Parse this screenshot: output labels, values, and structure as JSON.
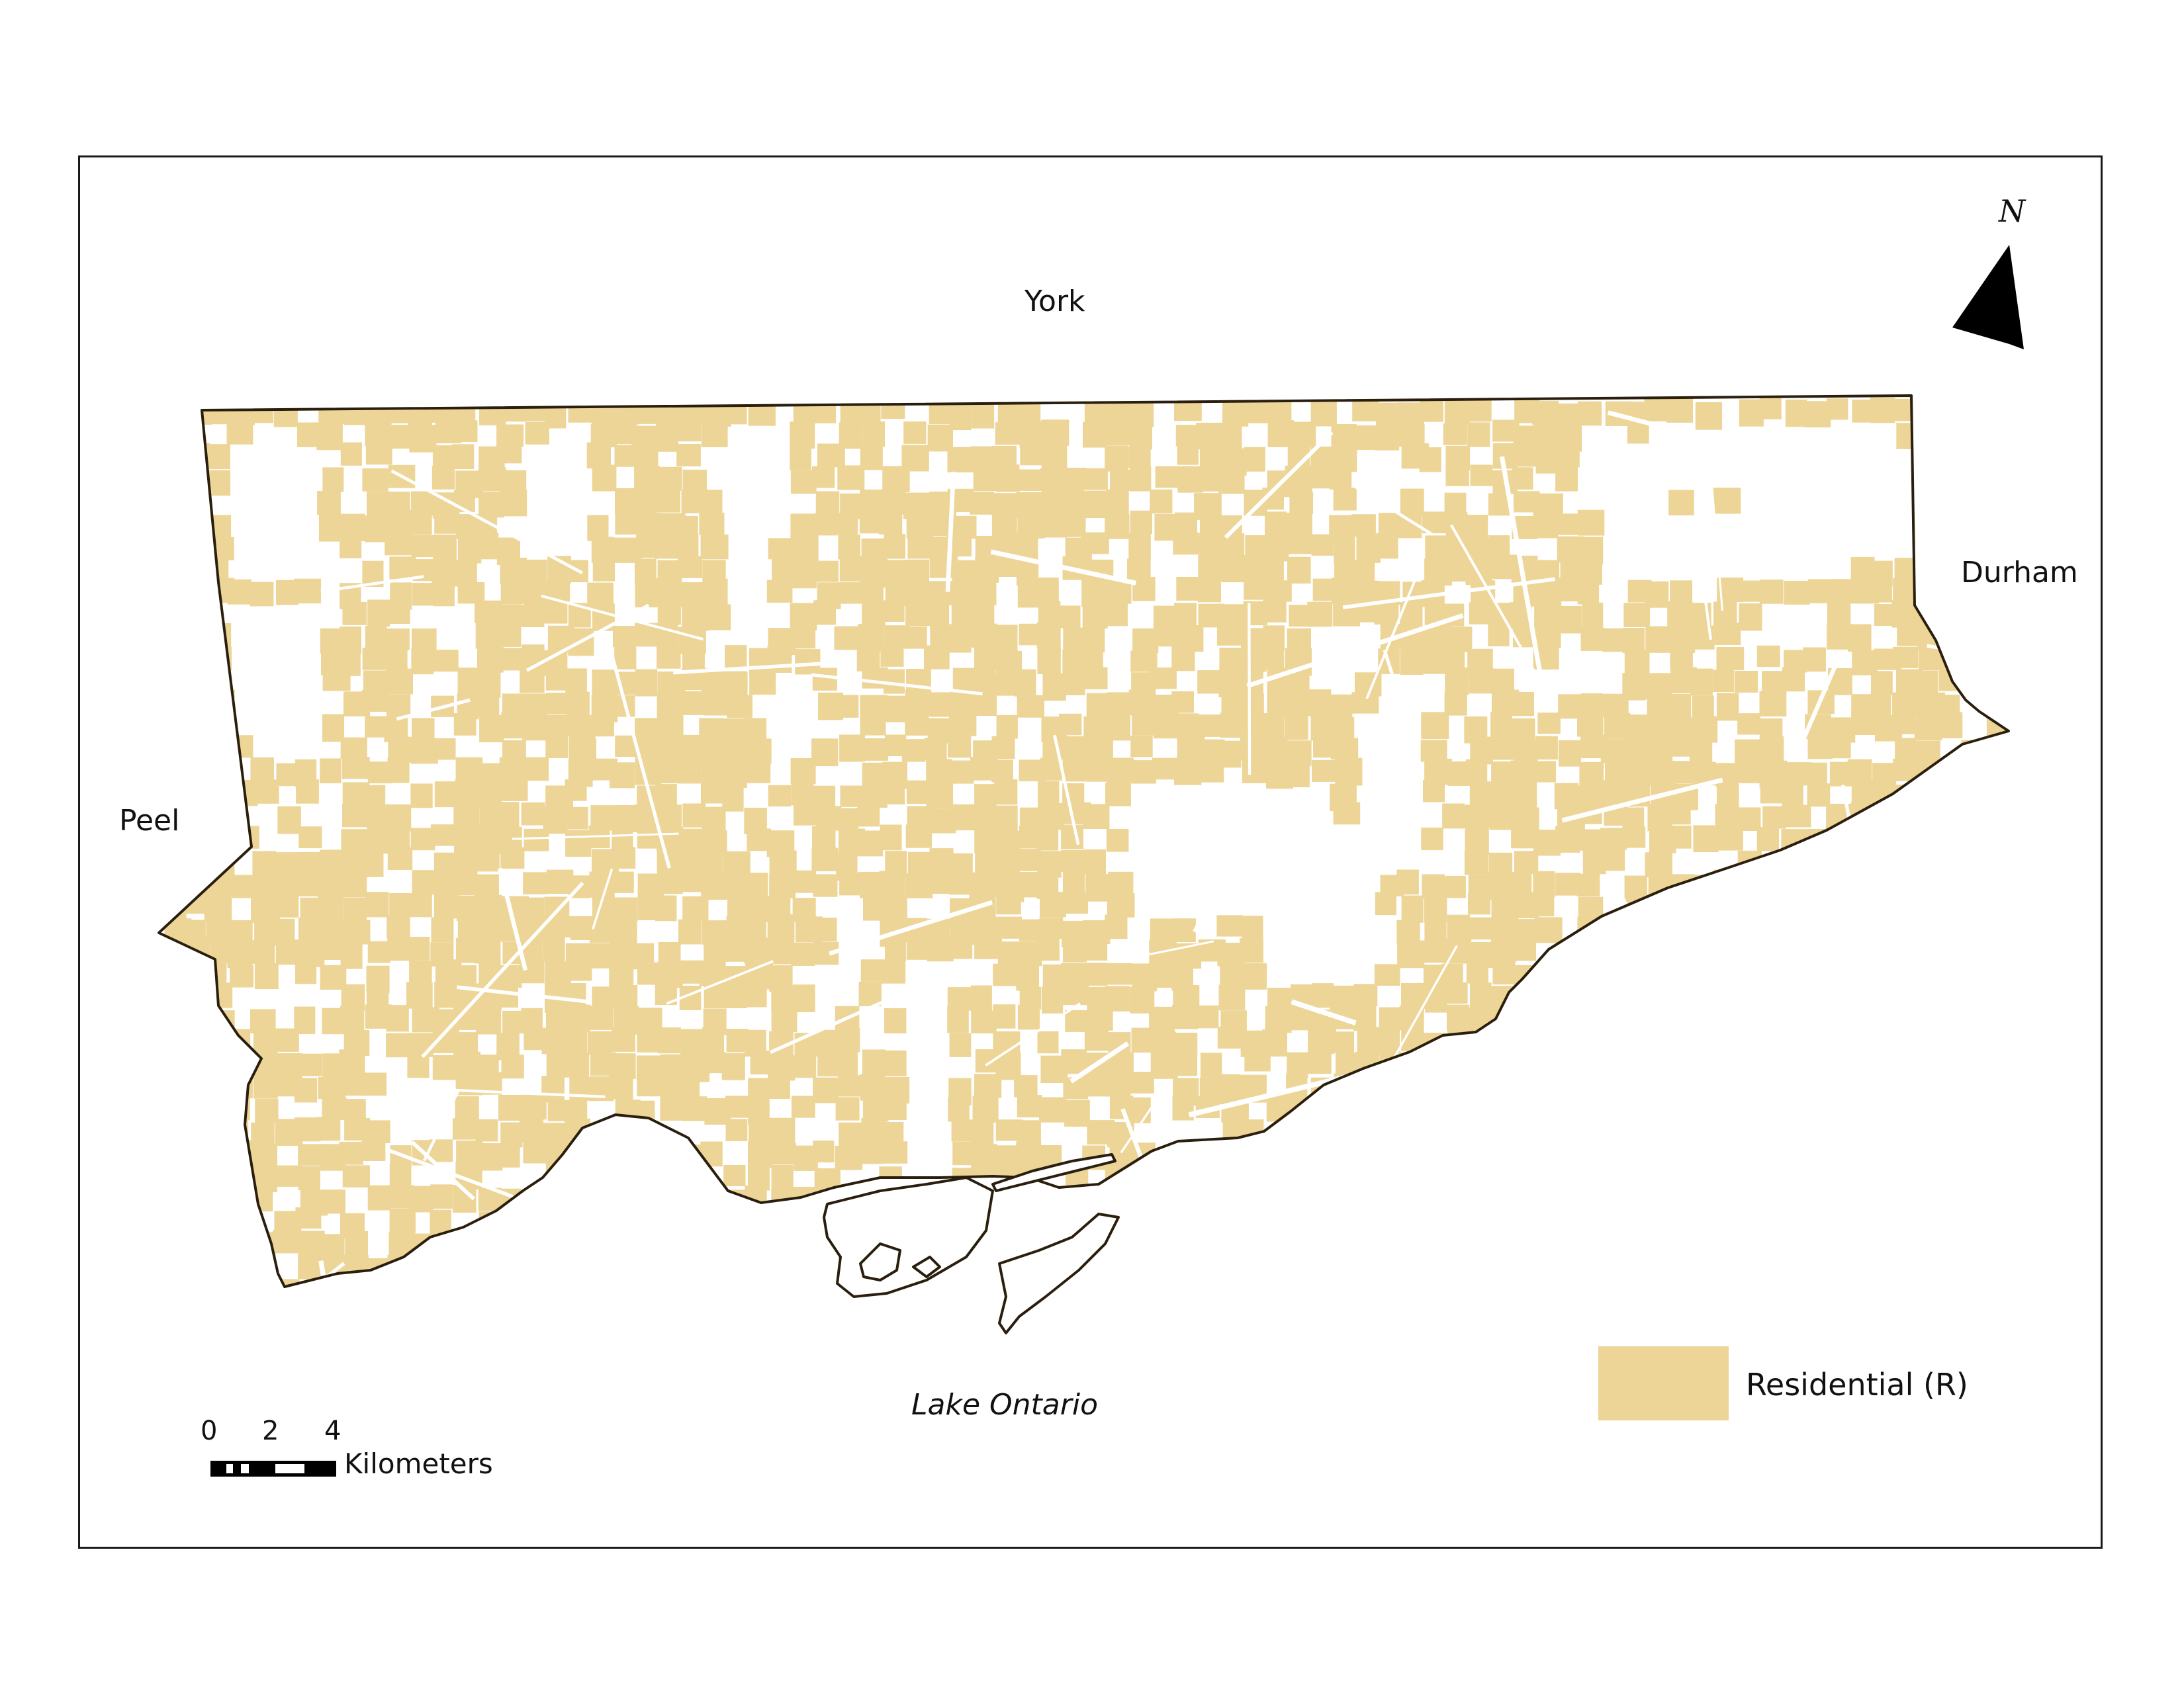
{
  "map": {
    "neighbors": {
      "north": "York",
      "east": "Durham",
      "west": "Peel"
    },
    "water_body": "Lake Ontario",
    "north_arrow_letter": "N",
    "legend": {
      "label": "Residential (R)",
      "color": "#EDD597"
    },
    "scale_bar": {
      "ticks": [
        "0",
        "2",
        "4"
      ],
      "unit": "Kilometers"
    },
    "colors": {
      "boundary": "#2a1e0e",
      "residential": "#EDD597",
      "background": "#FFFFFF"
    }
  }
}
